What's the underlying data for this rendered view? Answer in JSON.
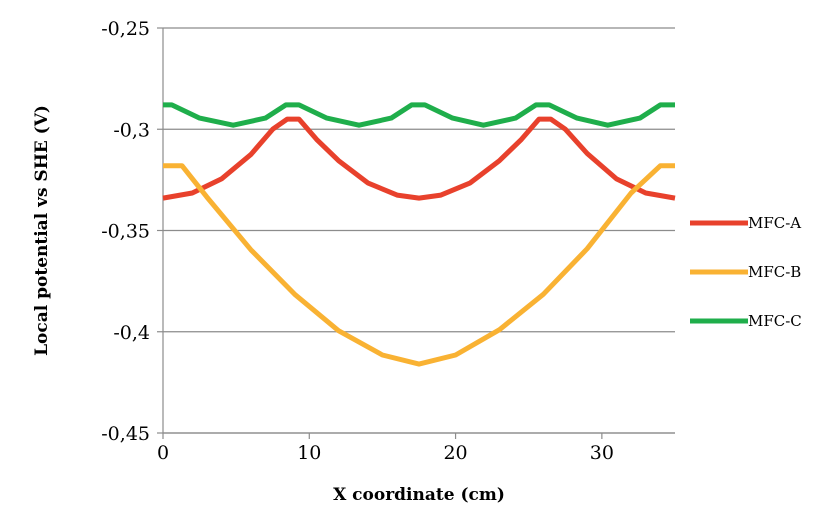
{
  "chart_data": {
    "type": "line",
    "title": "",
    "xlabel": "X coordinate (cm)",
    "ylabel": "Local potential vs SHE (V)",
    "xlim": [
      0,
      35
    ],
    "ylim": [
      -0.45,
      -0.25
    ],
    "x_ticks": [
      0,
      10,
      20,
      30
    ],
    "x_tick_labels": [
      "0",
      "10",
      "20",
      "30"
    ],
    "y_ticks": [
      -0.25,
      -0.3,
      -0.35,
      -0.4,
      -0.45
    ],
    "y_tick_labels": [
      "-0,25",
      "-0,3",
      "-0,35",
      "-0,4",
      "-0,45"
    ],
    "grid": "horizontal",
    "legend_position": "right",
    "series": [
      {
        "name": "MFC-A",
        "color": "#e8412c",
        "x": [
          0,
          2,
          4,
          6,
          7.5,
          8.5,
          9.3,
          10.5,
          12,
          14,
          16,
          17.5,
          19,
          21,
          23,
          24.5,
          25.7,
          26.5,
          27.5,
          29,
          31,
          33,
          35
        ],
        "y": [
          -0.334,
          -0.3315,
          -0.3245,
          -0.3125,
          -0.3,
          -0.295,
          -0.295,
          -0.305,
          -0.3155,
          -0.3265,
          -0.3325,
          -0.334,
          -0.3325,
          -0.3265,
          -0.3155,
          -0.305,
          -0.295,
          -0.295,
          -0.3,
          -0.312,
          -0.3245,
          -0.3315,
          -0.334
        ]
      },
      {
        "name": "MFC-B",
        "color": "#f9b233",
        "x": [
          0,
          1.3,
          3,
          6,
          9,
          12,
          15,
          17.5,
          20,
          23,
          26,
          29,
          32,
          34,
          35
        ],
        "y": [
          -0.318,
          -0.318,
          -0.3335,
          -0.3595,
          -0.3815,
          -0.3995,
          -0.4115,
          -0.416,
          -0.4115,
          -0.399,
          -0.3815,
          -0.359,
          -0.3315,
          -0.318,
          -0.318
        ]
      },
      {
        "name": "MFC-C",
        "color": "#1fae4b",
        "x": [
          0,
          0.6,
          2.5,
          4.8,
          7,
          8.4,
          9.3,
          11.2,
          13.4,
          15.6,
          17,
          17.9,
          19.8,
          21.9,
          24.1,
          25.5,
          26.4,
          28.3,
          30.4,
          32.6,
          34,
          35
        ],
        "y": [
          -0.288,
          -0.288,
          -0.2945,
          -0.298,
          -0.2945,
          -0.288,
          -0.288,
          -0.2945,
          -0.298,
          -0.2945,
          -0.288,
          -0.288,
          -0.2945,
          -0.298,
          -0.2945,
          -0.288,
          -0.288,
          -0.2945,
          -0.298,
          -0.2945,
          -0.288,
          -0.288
        ]
      }
    ]
  }
}
